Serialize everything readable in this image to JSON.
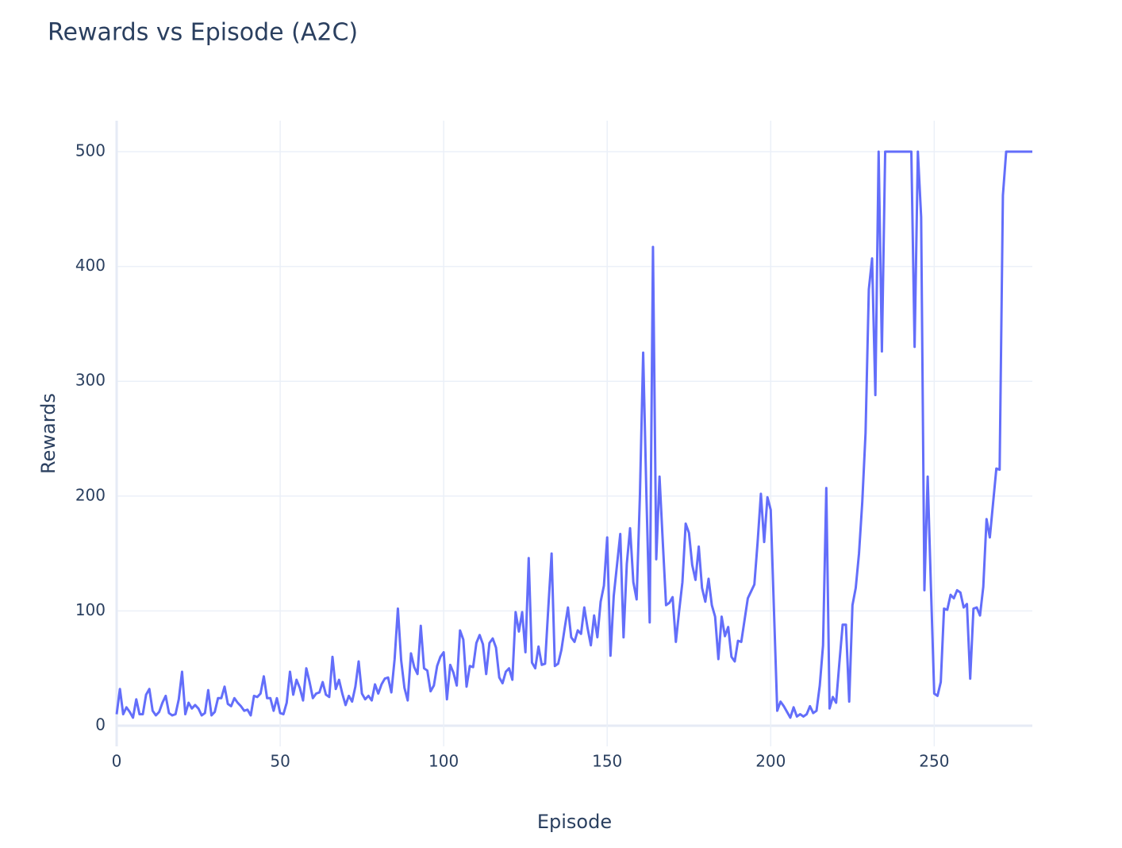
{
  "chart_data": {
    "type": "line",
    "title": "Rewards vs Episode (A2C)",
    "x_label": "Episode",
    "y_label": "Rewards",
    "x": [
      0,
      1,
      2,
      3,
      4,
      5,
      6,
      7,
      8,
      9,
      10,
      11,
      12,
      13,
      14,
      15,
      16,
      17,
      18,
      19,
      20,
      21,
      22,
      23,
      24,
      25,
      26,
      27,
      28,
      29,
      30,
      31,
      32,
      33,
      34,
      35,
      36,
      37,
      38,
      39,
      40,
      41,
      42,
      43,
      44,
      45,
      46,
      47,
      48,
      49,
      50,
      51,
      52,
      53,
      54,
      55,
      56,
      57,
      58,
      59,
      60,
      61,
      62,
      63,
      64,
      65,
      66,
      67,
      68,
      69,
      70,
      71,
      72,
      73,
      74,
      75,
      76,
      77,
      78,
      79,
      80,
      81,
      82,
      83,
      84,
      85,
      86,
      87,
      88,
      89,
      90,
      91,
      92,
      93,
      94,
      95,
      96,
      97,
      98,
      99,
      100,
      101,
      102,
      103,
      104,
      105,
      106,
      107,
      108,
      109,
      110,
      111,
      112,
      113,
      114,
      115,
      116,
      117,
      118,
      119,
      120,
      121,
      122,
      123,
      124,
      125,
      126,
      127,
      128,
      129,
      130,
      131,
      132,
      133,
      134,
      135,
      136,
      137,
      138,
      139,
      140,
      141,
      142,
      143,
      144,
      145,
      146,
      147,
      148,
      149,
      150,
      151,
      152,
      153,
      154,
      155,
      156,
      157,
      158,
      159,
      160,
      161,
      162,
      163,
      164,
      165,
      166,
      167,
      168,
      169,
      170,
      171,
      172,
      173,
      174,
      175,
      176,
      177,
      178,
      179,
      180,
      181,
      182,
      183,
      184,
      185,
      186,
      187,
      188,
      189,
      190,
      191,
      192,
      193,
      194,
      195,
      196,
      197,
      198,
      199,
      200,
      201,
      202,
      203,
      204,
      205,
      206,
      207,
      208,
      209,
      210,
      211,
      212,
      213,
      214,
      215,
      216,
      217,
      218,
      219,
      220,
      221,
      222,
      223,
      224,
      225,
      226,
      227,
      228,
      229,
      230,
      231,
      232,
      233,
      234,
      235,
      236,
      237,
      238,
      239,
      240,
      241,
      242,
      243,
      244,
      245,
      246,
      247,
      248,
      249,
      250,
      251,
      252,
      253,
      254,
      255,
      256,
      257,
      258,
      259,
      260,
      261,
      262,
      263,
      264,
      265,
      266,
      267,
      268,
      269,
      270,
      271,
      272,
      273,
      274,
      275,
      276,
      277,
      278,
      279,
      280
    ],
    "values": [
      10,
      32,
      10,
      16,
      12,
      7,
      23,
      10,
      10,
      27,
      32,
      13,
      9,
      12,
      20,
      26,
      11,
      9,
      10,
      23,
      47,
      10,
      20,
      15,
      18,
      15,
      9,
      11,
      31,
      9,
      12,
      24,
      24,
      34,
      19,
      17,
      24,
      20,
      17,
      13,
      14,
      9,
      26,
      25,
      28,
      43,
      24,
      24,
      13,
      24,
      11,
      10,
      20,
      47,
      27,
      40,
      33,
      22,
      50,
      38,
      24,
      28,
      29,
      38,
      27,
      25,
      60,
      32,
      40,
      28,
      18,
      26,
      21,
      34,
      56,
      28,
      23,
      26,
      22,
      36,
      28,
      36,
      41,
      42,
      29,
      58,
      102,
      57,
      33,
      22,
      63,
      51,
      45,
      87,
      50,
      48,
      30,
      35,
      52,
      60,
      64,
      23,
      53,
      46,
      35,
      83,
      75,
      34,
      52,
      51,
      72,
      79,
      71,
      45,
      72,
      76,
      68,
      42,
      37,
      47,
      50,
      40,
      99,
      82,
      99,
      64,
      146,
      55,
      50,
      69,
      53,
      54,
      103,
      150,
      52,
      54,
      66,
      85,
      103,
      77,
      73,
      83,
      80,
      103,
      85,
      70,
      96,
      77,
      108,
      122,
      164,
      61,
      113,
      140,
      167,
      77,
      141,
      172,
      125,
      110,
      200,
      325,
      200,
      90,
      417,
      145,
      217,
      160,
      105,
      107,
      112,
      73,
      100,
      125,
      176,
      168,
      140,
      127,
      156,
      120,
      108,
      128,
      105,
      95,
      58,
      95,
      78,
      86,
      60,
      56,
      74,
      73,
      92,
      111,
      117,
      123,
      160,
      202,
      160,
      199,
      188,
      100,
      13,
      21,
      17,
      12,
      7,
      16,
      8,
      10,
      8,
      10,
      17,
      11,
      13,
      35,
      70,
      207,
      15,
      25,
      20,
      55,
      88,
      88,
      21,
      105,
      120,
      150,
      195,
      255,
      380,
      407,
      288,
      500,
      326,
      500,
      500,
      500,
      500,
      500,
      500,
      500,
      500,
      500,
      330,
      500,
      443,
      118,
      217,
      120,
      28,
      26,
      38,
      102,
      101,
      114,
      111,
      118,
      116,
      103,
      106,
      41,
      102,
      103,
      96,
      121,
      180,
      164,
      194,
      224,
      223,
      462,
      500,
      500,
      500,
      500,
      500,
      500,
      500,
      500,
      500
    ],
    "color": "#636efa",
    "xlim": [
      0,
      280
    ],
    "ylim": [
      -18,
      527
    ],
    "xticks": [
      0,
      50,
      100,
      150,
      200,
      250
    ],
    "yticks": [
      0,
      100,
      200,
      300,
      400,
      500
    ],
    "grid": true
  }
}
